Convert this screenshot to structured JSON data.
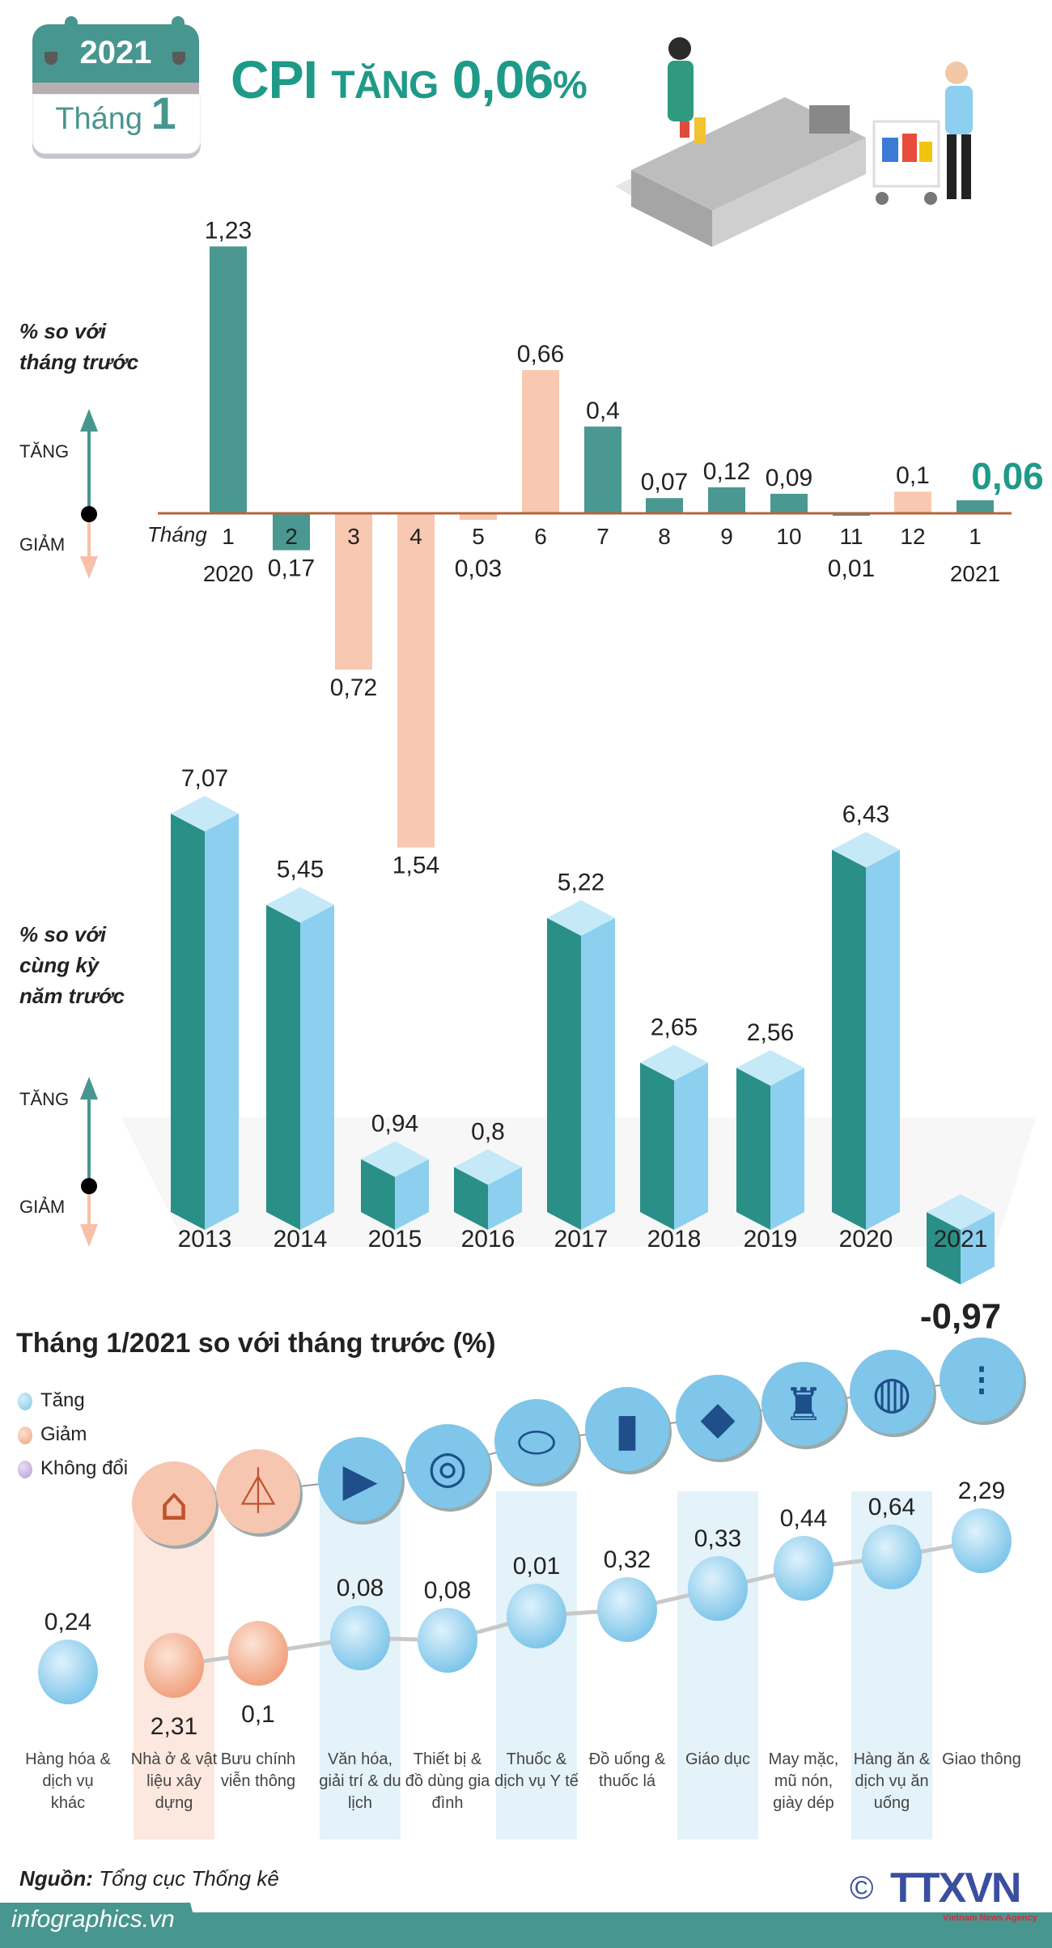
{
  "header": {
    "year": "2021",
    "month_label": "Tháng",
    "month_number": "1",
    "title_cpi": "CPI",
    "title_word": "TĂNG",
    "title_value": "0,06",
    "title_pct": "%"
  },
  "colors": {
    "teal": "#4a9891",
    "peach": "#f8c8b0",
    "baseline": "#b5653a",
    "bar3d_front": "#2a8f87",
    "bar3d_side": "#8dcfee",
    "bar3d_top": "#c6e9f8",
    "bubble_up": "#7fc6ea",
    "bubble_down": "#f0a17e",
    "band_blue": "#e4f3fa",
    "band_peach": "#fde8df",
    "title": "#1f9a88"
  },
  "chart_data": [
    {
      "type": "bar",
      "title": "",
      "side_label": [
        "% so với",
        "tháng trước"
      ],
      "xlabel": "Tháng",
      "up_label": "TĂNG",
      "down_label": "GIẢM",
      "categories": [
        "1",
        "2",
        "3",
        "4",
        "5",
        "6",
        "7",
        "8",
        "9",
        "10",
        "11",
        "12",
        "1"
      ],
      "year_labels": {
        "0": "2020",
        "12": "2021"
      },
      "values": [
        1.23,
        -0.17,
        -0.72,
        -1.54,
        -0.03,
        0.66,
        0.4,
        0.07,
        0.12,
        0.09,
        -0.01,
        0.1,
        0.06
      ],
      "value_labels": [
        "1,23",
        "0,17",
        "0,72",
        "1,54",
        "0,03",
        "0,66",
        "0,4",
        "0,07",
        "0,12",
        "0,09",
        "0,01",
        "0,1",
        "0,06"
      ],
      "bar_colors": [
        "teal",
        "teal",
        "peach",
        "peach",
        "peach",
        "peach",
        "teal",
        "teal",
        "teal",
        "teal",
        "teal",
        "peach",
        "teal"
      ],
      "highlight_index": 12
    },
    {
      "type": "bar",
      "title": "",
      "side_label": [
        "% so với",
        "cùng kỳ",
        "năm trước"
      ],
      "up_label": "TĂNG",
      "down_label": "GIẢM",
      "categories": [
        "2013",
        "2014",
        "2015",
        "2016",
        "2017",
        "2018",
        "2019",
        "2020",
        "2021"
      ],
      "values": [
        7.07,
        5.45,
        0.94,
        0.8,
        5.22,
        2.65,
        2.56,
        6.43,
        -0.97
      ],
      "value_labels": [
        "7,07",
        "5,45",
        "0,94",
        "0,8",
        "5,22",
        "2,65",
        "2,56",
        "6,43",
        "-0,97"
      ],
      "style": "3d"
    },
    {
      "type": "scatter",
      "title": "Tháng 1/2021 so với tháng trước (%)",
      "legend": [
        {
          "label": "Tăng",
          "color": "#7fc6ea"
        },
        {
          "label": "Giảm",
          "color": "#f0a17e"
        },
        {
          "label": "Không đổi",
          "color": "#b89ad0"
        }
      ],
      "categories": [
        "Hàng hóa & dịch vụ khác",
        "Nhà ở & vật liệu xây dựng",
        "Bưu chính viễn thông",
        "Văn hóa, giải trí & du lịch",
        "Thiết bị & đồ dùng gia đình",
        "Thuốc & dịch vụ Y tế",
        "Đồ uống & thuốc lá",
        "Giáo dục",
        "May mặc, mũ nón, giày dép",
        "Hàng ăn & dịch vụ ăn uống",
        "Giao thông"
      ],
      "values": [
        0.24,
        -2.31,
        -0.1,
        0.08,
        0.08,
        0.01,
        0.32,
        0.33,
        0.44,
        0.64,
        2.29
      ],
      "value_labels": [
        "0,24",
        "2,31",
        "0,1",
        "0,08",
        "0,08",
        "0,01",
        "0,32",
        "0,33",
        "0,44",
        "0,64",
        "2,29"
      ],
      "direction": [
        "up",
        "down",
        "down",
        "up",
        "up",
        "up",
        "up",
        "up",
        "up",
        "up",
        "up"
      ],
      "icons": [
        null,
        "house-icon",
        "antenna-tower-icon",
        "film-clapper-icon",
        "washing-machine-icon",
        "pills-icon",
        "drink-cigarette-icon",
        "graduation-cap-icon",
        "clothes-shoes-icon",
        "food-plate-icon",
        "traffic-light-icon"
      ]
    }
  ],
  "footer": {
    "source_label": "Nguồn:",
    "source": "Tổng cục Thống kê",
    "site": "infographics.vn",
    "logo": "TTXVN",
    "logo_sub": "Vietnam News Agency",
    "copyright": "©"
  }
}
